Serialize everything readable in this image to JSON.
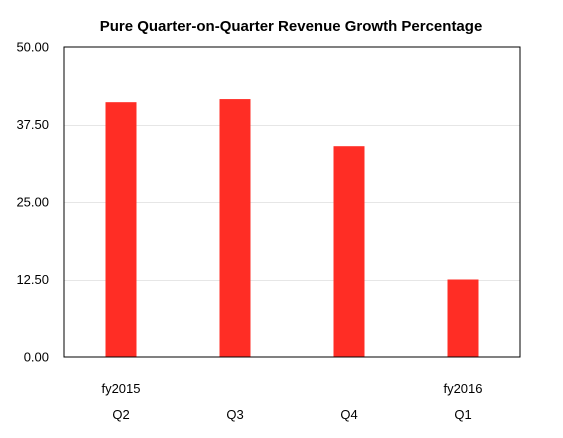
{
  "colors": {
    "bar": "#ff2d25",
    "grid": "#e6e6e6",
    "frame": "#000000",
    "background": "#ffffff"
  },
  "chart_data": {
    "type": "bar",
    "title": "Pure Quarter-on-Quarter Revenue Growth Percentage",
    "xlabel": "",
    "ylabel": "",
    "categories": [
      "Q2",
      "Q3",
      "Q4",
      "Q1"
    ],
    "year_labels": [
      "fy2015",
      "",
      "",
      "fy2016"
    ],
    "values": [
      41.1,
      41.6,
      34.0,
      12.5
    ],
    "ylim": [
      0,
      50
    ],
    "yticks": [
      "0.00",
      "12.50",
      "25.00",
      "37.50",
      "50.00"
    ],
    "ytick_values": [
      0,
      12.5,
      25,
      37.5,
      50
    ],
    "grid": true,
    "legend": "none"
  }
}
